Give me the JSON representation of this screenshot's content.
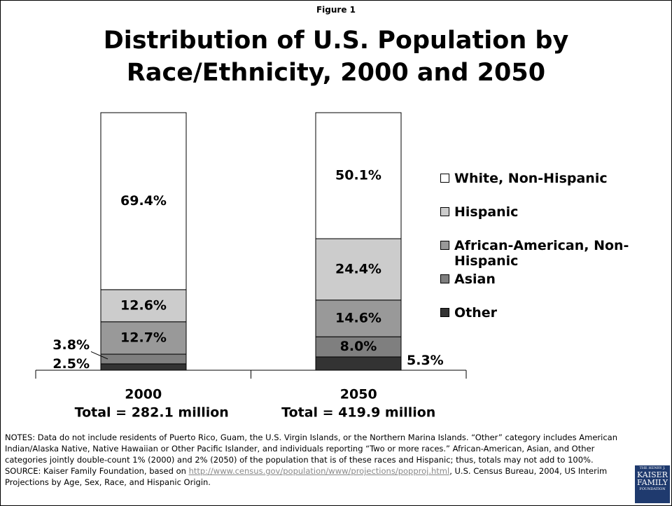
{
  "chart_data": {
    "type": "stacked-bar-percent",
    "figure_label": "Figure 1",
    "title": "Distribution of U.S. Population by Race/Ethnicity, 2000 and 2050",
    "categories": [
      "2000",
      "2050"
    ],
    "category_totals": [
      "Total = 282.1 million",
      "Total = 419.9 million"
    ],
    "series": [
      {
        "name": "Other",
        "color": "#333333",
        "values": [
          2.5,
          5.3
        ],
        "value_labels": [
          "2.5%",
          "5.3%"
        ]
      },
      {
        "name": "Asian",
        "color": "#7f7f7f",
        "values": [
          3.8,
          8.0
        ],
        "value_labels": [
          "3.8%",
          "8.0%"
        ]
      },
      {
        "name": "African-American, Non-Hispanic",
        "color": "#999999",
        "values": [
          12.7,
          14.6
        ],
        "value_labels": [
          "12.7%",
          "14.6%"
        ]
      },
      {
        "name": "Hispanic",
        "color": "#cccccc",
        "values": [
          12.6,
          24.4
        ],
        "value_labels": [
          "12.6%",
          "24.4%"
        ]
      },
      {
        "name": "White, Non-Hispanic",
        "color": "#ffffff",
        "values": [
          69.4,
          50.1
        ],
        "value_labels": [
          "69.4%",
          "50.1%"
        ]
      }
    ],
    "legend": "right",
    "notes": "NOTES: Data do not include residents of Puerto Rico, Guam, the U.S. Virgin Islands, or the Northern Marina Islands. “Other” category includes American Indian/Alaska Native, Native Hawaiian or Other Pacific Islander, and individuals reporting “Two or more races.” African-American, Asian, and Other categories jointly double-count 1% (2000) and 2% (2050) of the population that is of these races and Hispanic; thus, totals may not add to 100%.",
    "source_prefix": "SOURCE: Kaiser Family Foundation, based on ",
    "source_link": "http://www.census.gov/population/www/projections/popproj.html",
    "source_suffix": ", U.S. Census Bureau, 2004, US Interim Projections by Age, Sex, Race, and Hispanic Origin.",
    "logo": [
      "THE HENRY J.",
      "KAISER",
      "FAMILY",
      "FOUNDATION"
    ]
  }
}
